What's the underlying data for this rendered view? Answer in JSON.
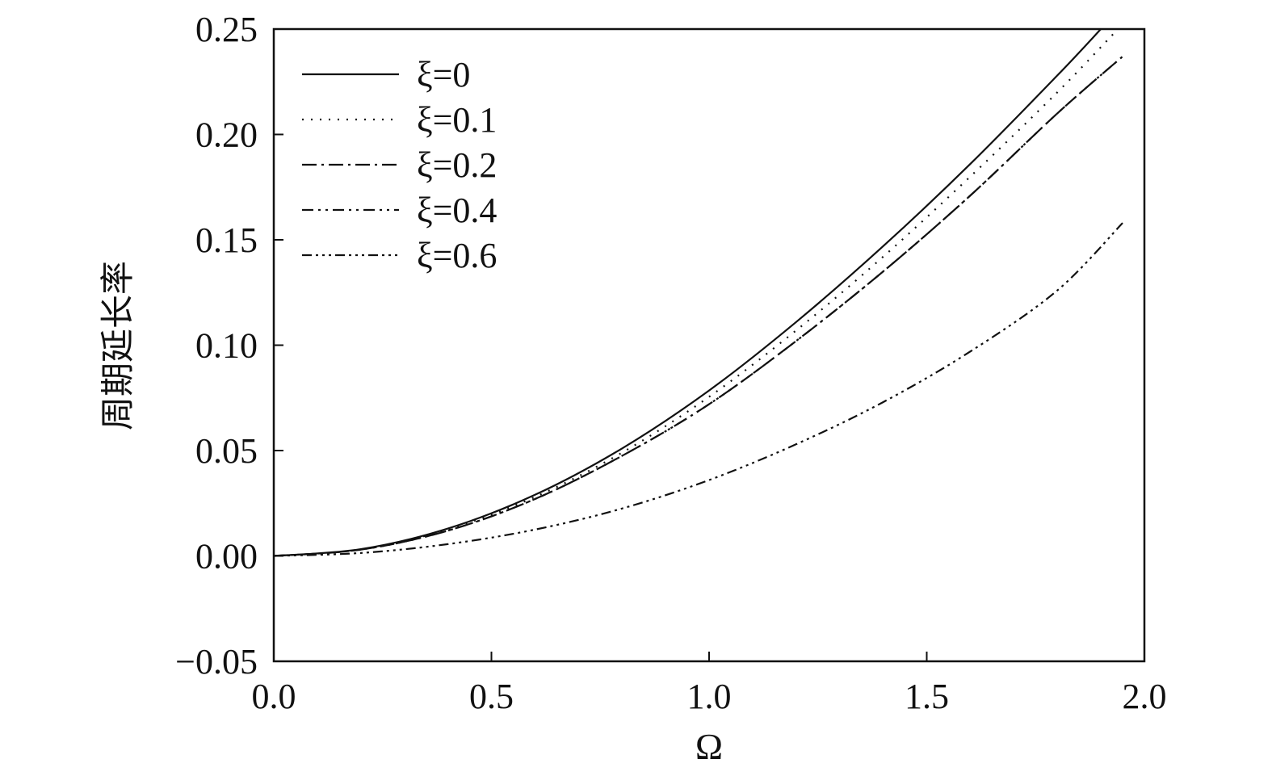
{
  "chart_data": {
    "type": "line",
    "title": "",
    "xlabel": "Ω",
    "ylabel": "周期延长率",
    "xlim": [
      0.0,
      2.0
    ],
    "ylim": [
      -0.05,
      0.25
    ],
    "xticks": [
      "0.0",
      "0.5",
      "1.0",
      "1.5",
      "2.0"
    ],
    "yticks": [
      "0.25",
      "0.20",
      "0.15",
      "0.10",
      "0.05",
      "0.00",
      "−0.05"
    ],
    "grid": false,
    "legend_position": "top-left",
    "series": [
      {
        "name": "ξ=0",
        "style": "solid",
        "x": [
          0.0,
          0.2,
          0.4,
          0.6,
          0.8,
          1.0,
          1.2,
          1.4,
          1.6,
          1.8,
          1.9
        ],
        "values": [
          0.0,
          0.0032,
          0.013,
          0.029,
          0.051,
          0.0785,
          0.111,
          0.147,
          0.186,
          0.228,
          0.25
        ]
      },
      {
        "name": "ξ=0.1",
        "style": "dotted",
        "x": [
          0.0,
          0.2,
          0.4,
          0.6,
          0.8,
          1.0,
          1.2,
          1.4,
          1.6,
          1.8,
          1.93
        ],
        "values": [
          0.0,
          0.0031,
          0.0126,
          0.028,
          0.049,
          0.0755,
          0.107,
          0.142,
          0.18,
          0.22,
          0.248
        ]
      },
      {
        "name": "ξ=0.2",
        "style": "dash-dot",
        "x": [
          0.0,
          0.2,
          0.4,
          0.6,
          0.8,
          1.0,
          1.2,
          1.4,
          1.6,
          1.8,
          1.95
        ],
        "values": [
          0.0,
          0.003,
          0.012,
          0.027,
          0.0475,
          0.072,
          0.102,
          0.135,
          0.171,
          0.21,
          0.237
        ]
      },
      {
        "name": "ξ=0.4",
        "style": "dash-dot-dot",
        "x": [
          0.0,
          0.2,
          0.4,
          0.6,
          0.8,
          1.0,
          1.2,
          1.4,
          1.6,
          1.8,
          1.95
        ],
        "values": [
          0.0,
          0.003,
          0.012,
          0.027,
          0.0475,
          0.072,
          0.102,
          0.135,
          0.171,
          0.21,
          0.237
        ]
      },
      {
        "name": "ξ=0.6",
        "style": "dash-dot-dot-dot",
        "x": [
          0.0,
          0.2,
          0.4,
          0.6,
          0.8,
          1.0,
          1.2,
          1.4,
          1.6,
          1.8,
          1.95
        ],
        "values": [
          0.0,
          0.0014,
          0.0056,
          0.0125,
          0.0225,
          0.036,
          0.053,
          0.073,
          0.097,
          0.126,
          0.158
        ]
      }
    ]
  }
}
